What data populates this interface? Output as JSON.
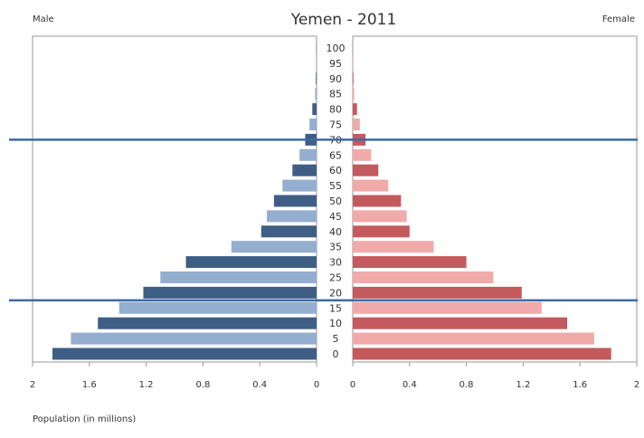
{
  "chart_data": {
    "type": "bar",
    "title": "Yemen - 2011",
    "left_label": "Male",
    "right_label": "Female",
    "xlabel": "Population (in millions)",
    "xlim": [
      0,
      2
    ],
    "x_tick_labels_left": [
      "2",
      "1.6",
      "1.2",
      "0.8",
      "0.4",
      "0"
    ],
    "x_tick_labels_right": [
      "0",
      "0.4",
      "0.8",
      "1.2",
      "1.6",
      "2"
    ],
    "x_tick_values": [
      2,
      1.6,
      1.2,
      0.8,
      0.4,
      0
    ],
    "x_tick_values_right": [
      0,
      0.4,
      0.8,
      1.2,
      1.6,
      2
    ],
    "age_groups": [
      "0",
      "5",
      "10",
      "15",
      "20",
      "25",
      "30",
      "35",
      "40",
      "45",
      "50",
      "55",
      "60",
      "65",
      "70",
      "75",
      "80",
      "85",
      "90",
      "95",
      "100"
    ],
    "series": [
      {
        "name": "Male",
        "values": [
          1.86,
          1.73,
          1.54,
          1.39,
          1.22,
          1.1,
          0.92,
          0.6,
          0.39,
          0.35,
          0.3,
          0.24,
          0.17,
          0.12,
          0.08,
          0.05,
          0.03,
          0.01,
          0.005,
          0.002,
          0.001
        ]
      },
      {
        "name": "Female",
        "values": [
          1.82,
          1.7,
          1.51,
          1.33,
          1.19,
          0.99,
          0.8,
          0.57,
          0.4,
          0.38,
          0.34,
          0.25,
          0.18,
          0.13,
          0.09,
          0.05,
          0.03,
          0.01,
          0.005,
          0.002,
          0.001
        ]
      }
    ],
    "colors": {
      "male_dark": "#3f5e86",
      "male_light": "#94aed0",
      "female_dark": "#c45a5e",
      "female_light": "#f0aaa9",
      "reference_line": "#3a6aa8",
      "frame": "#9a9a9a",
      "text": "#333333"
    },
    "reference_lines_at_age": [
      70,
      17.5
    ],
    "grid": false
  }
}
